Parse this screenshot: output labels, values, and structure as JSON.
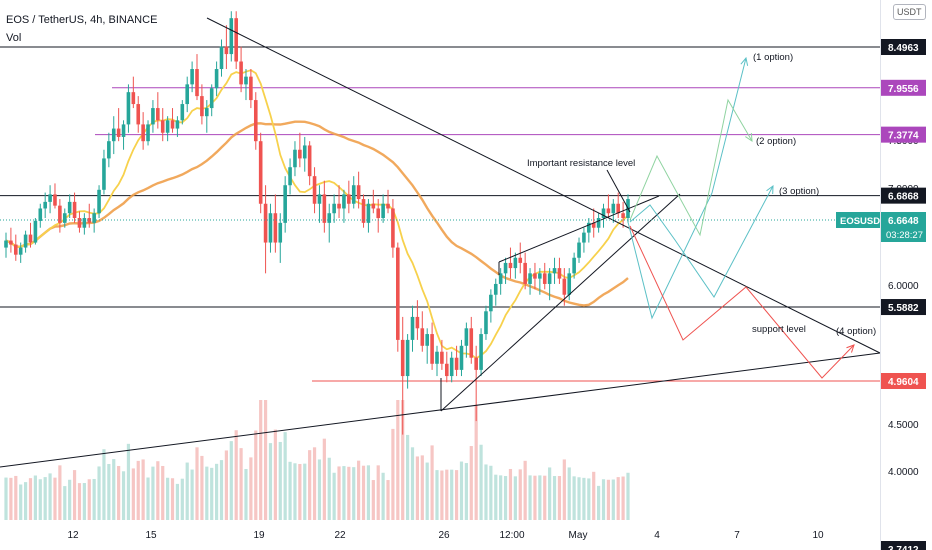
{
  "header": {
    "symbol_line": "EOS / TetherUS, 4h, BINANCE",
    "volume_label": "Vol"
  },
  "currency_tag": "USDT",
  "colors": {
    "up": "#26a69a",
    "down": "#ef5350",
    "ma_fast": "#f7d14c",
    "ma_slow": "#f0a04b",
    "purple": "#ab47bc",
    "projection_red": "#ef5350",
    "projection_teal": "#5bc0c6",
    "projection_green": "#8fd3a0"
  },
  "chart_data": {
    "type": "candlestick",
    "y_axis": {
      "scale": "log",
      "range": [
        3.74,
        9.0
      ],
      "ticks": [
        "7.5000",
        "7.0000",
        "6.0000",
        "4.5000",
        "4.0000"
      ]
    },
    "x_axis": {
      "ticks": [
        "12",
        "15",
        "19",
        "22",
        "26",
        "12:00",
        "May",
        "4",
        "7",
        "10"
      ]
    },
    "price_levels": [
      {
        "label": "8.4963",
        "value": 8.4963,
        "style": "black-line"
      },
      {
        "label": "7.9556",
        "value": 7.9556,
        "style": "purple-line"
      },
      {
        "label": "7.3774",
        "value": 7.3774,
        "style": "purple-line"
      },
      {
        "label": "6.6868",
        "value": 6.6868,
        "style": "black-line"
      },
      {
        "label": "5.5882",
        "value": 5.5882,
        "style": "black-line"
      },
      {
        "label": "4.9604",
        "value": 4.9604,
        "style": "red-line"
      }
    ],
    "current_price": {
      "symbol": "EOSUSDT",
      "price": "6.6648",
      "countdown": "03:28:27"
    },
    "bottom_partial_tick": "3.7412",
    "annotations": {
      "resistance": "Important resistance level",
      "support": "support level",
      "option1": "(1 option)",
      "option2": "(2 option)",
      "option3": "(3 option)",
      "option4": "(4 option)"
    },
    "candles": [
      [
        6.15,
        6.3,
        6.05,
        6.22
      ],
      [
        6.22,
        6.35,
        6.1,
        6.18
      ],
      [
        6.18,
        6.28,
        6.02,
        6.08
      ],
      [
        6.08,
        6.2,
        6.0,
        6.15
      ],
      [
        6.15,
        6.32,
        6.1,
        6.28
      ],
      [
        6.28,
        6.4,
        6.15,
        6.2
      ],
      [
        6.2,
        6.45,
        6.18,
        6.42
      ],
      [
        6.42,
        6.6,
        6.35,
        6.55
      ],
      [
        6.55,
        6.72,
        6.45,
        6.62
      ],
      [
        6.62,
        6.8,
        6.5,
        6.7
      ],
      [
        6.7,
        6.82,
        6.55,
        6.58
      ],
      [
        6.58,
        6.65,
        6.3,
        6.4
      ],
      [
        6.4,
        6.55,
        6.35,
        6.5
      ],
      [
        6.5,
        6.7,
        6.45,
        6.62
      ],
      [
        6.62,
        6.72,
        6.4,
        6.45
      ],
      [
        6.45,
        6.52,
        6.3,
        6.35
      ],
      [
        6.35,
        6.5,
        6.28,
        6.45
      ],
      [
        6.45,
        6.6,
        6.35,
        6.4
      ],
      [
        6.4,
        6.55,
        6.3,
        6.5
      ],
      [
        6.5,
        6.8,
        6.45,
        6.75
      ],
      [
        6.75,
        7.2,
        6.7,
        7.1
      ],
      [
        7.1,
        7.4,
        7.0,
        7.3
      ],
      [
        7.3,
        7.6,
        7.15,
        7.45
      ],
      [
        7.45,
        7.7,
        7.3,
        7.35
      ],
      [
        7.35,
        7.55,
        7.2,
        7.5
      ],
      [
        7.5,
        8.0,
        7.4,
        7.9
      ],
      [
        7.9,
        8.1,
        7.7,
        7.75
      ],
      [
        7.75,
        7.85,
        7.4,
        7.5
      ],
      [
        7.5,
        7.65,
        7.2,
        7.3
      ],
      [
        7.3,
        7.55,
        7.25,
        7.5
      ],
      [
        7.5,
        7.8,
        7.4,
        7.7
      ],
      [
        7.7,
        7.9,
        7.45,
        7.55
      ],
      [
        7.55,
        7.7,
        7.3,
        7.4
      ],
      [
        7.4,
        7.6,
        7.3,
        7.55
      ],
      [
        7.55,
        7.7,
        7.4,
        7.45
      ],
      [
        7.45,
        7.6,
        7.35,
        7.55
      ],
      [
        7.55,
        7.8,
        7.5,
        7.75
      ],
      [
        7.75,
        8.1,
        7.65,
        8.0
      ],
      [
        8.0,
        8.3,
        7.9,
        8.2
      ],
      [
        8.2,
        8.4,
        7.8,
        7.85
      ],
      [
        7.85,
        8.0,
        7.5,
        7.6
      ],
      [
        7.6,
        7.8,
        7.4,
        7.7
      ],
      [
        7.7,
        8.0,
        7.6,
        7.95
      ],
      [
        7.95,
        8.3,
        7.85,
        8.2
      ],
      [
        8.2,
        8.6,
        8.1,
        8.5
      ],
      [
        8.5,
        8.8,
        8.2,
        8.4
      ],
      [
        8.4,
        9.0,
        8.3,
        8.9
      ],
      [
        8.9,
        9.0,
        8.2,
        8.3
      ],
      [
        8.3,
        8.5,
        7.9,
        8.0
      ],
      [
        8.0,
        8.2,
        7.8,
        8.1
      ],
      [
        8.1,
        8.2,
        7.7,
        7.8
      ],
      [
        7.8,
        7.9,
        7.2,
        7.3
      ],
      [
        7.3,
        7.4,
        6.5,
        6.6
      ],
      [
        6.6,
        6.8,
        5.9,
        6.2
      ],
      [
        6.2,
        6.6,
        6.1,
        6.5
      ],
      [
        6.5,
        6.7,
        6.1,
        6.2
      ],
      [
        6.2,
        6.5,
        6.0,
        6.4
      ],
      [
        6.4,
        6.9,
        6.3,
        6.8
      ],
      [
        6.8,
        7.1,
        6.7,
        7.0
      ],
      [
        7.0,
        7.3,
        6.9,
        7.2
      ],
      [
        7.2,
        7.4,
        7.0,
        7.1
      ],
      [
        7.1,
        7.35,
        6.95,
        7.25
      ],
      [
        7.25,
        7.3,
        6.8,
        6.9
      ],
      [
        6.9,
        7.0,
        6.5,
        6.6
      ],
      [
        6.6,
        6.8,
        6.4,
        6.7
      ],
      [
        6.7,
        6.85,
        6.3,
        6.4
      ],
      [
        6.4,
        6.6,
        6.2,
        6.5
      ],
      [
        6.5,
        6.7,
        6.4,
        6.6
      ],
      [
        6.6,
        6.8,
        6.45,
        6.55
      ],
      [
        6.55,
        6.75,
        6.4,
        6.7
      ],
      [
        6.7,
        6.85,
        6.5,
        6.6
      ],
      [
        6.6,
        6.9,
        6.55,
        6.8
      ],
      [
        6.8,
        6.95,
        6.55,
        6.65
      ],
      [
        6.65,
        6.7,
        6.35,
        6.4
      ],
      [
        6.4,
        6.65,
        6.3,
        6.6
      ],
      [
        6.6,
        6.75,
        6.5,
        6.55
      ],
      [
        6.55,
        6.65,
        6.3,
        6.45
      ],
      [
        6.45,
        6.7,
        6.4,
        6.6
      ],
      [
        6.6,
        6.75,
        6.5,
        6.55
      ],
      [
        6.55,
        6.65,
        6.05,
        6.15
      ],
      [
        6.15,
        6.2,
        5.2,
        5.3
      ],
      [
        5.3,
        5.5,
        4.55,
        5.0
      ],
      [
        5.0,
        5.35,
        4.9,
        5.3
      ],
      [
        5.3,
        5.6,
        5.2,
        5.5
      ],
      [
        5.5,
        5.65,
        5.3,
        5.4
      ],
      [
        5.4,
        5.55,
        5.2,
        5.25
      ],
      [
        5.25,
        5.4,
        5.1,
        5.35
      ],
      [
        5.35,
        5.45,
        5.05,
        5.1
      ],
      [
        5.1,
        5.25,
        5.0,
        5.2
      ],
      [
        5.2,
        5.3,
        5.05,
        5.1
      ],
      [
        5.1,
        5.2,
        4.95,
        5.0
      ],
      [
        5.0,
        5.2,
        4.95,
        5.15
      ],
      [
        5.15,
        5.25,
        5.0,
        5.05
      ],
      [
        5.05,
        5.3,
        5.0,
        5.25
      ],
      [
        5.25,
        5.45,
        5.15,
        5.4
      ],
      [
        5.4,
        5.5,
        5.1,
        5.15
      ],
      [
        5.15,
        5.25,
        4.65,
        5.05
      ],
      [
        5.05,
        5.4,
        5.0,
        5.35
      ],
      [
        5.35,
        5.6,
        5.3,
        5.55
      ],
      [
        5.55,
        5.75,
        5.45,
        5.7
      ],
      [
        5.7,
        5.85,
        5.6,
        5.8
      ],
      [
        5.8,
        5.95,
        5.7,
        5.9
      ],
      [
        5.9,
        6.05,
        5.8,
        6.0
      ],
      [
        6.0,
        6.15,
        5.85,
        5.95
      ],
      [
        5.95,
        6.1,
        5.85,
        6.05
      ],
      [
        6.05,
        6.2,
        5.9,
        6.0
      ],
      [
        6.0,
        6.1,
        5.75,
        5.8
      ],
      [
        5.8,
        5.95,
        5.7,
        5.9
      ],
      [
        5.9,
        6.0,
        5.75,
        5.85
      ],
      [
        5.85,
        5.95,
        5.7,
        5.9
      ],
      [
        5.9,
        6.0,
        5.75,
        5.8
      ],
      [
        5.8,
        5.95,
        5.65,
        5.9
      ],
      [
        5.9,
        6.05,
        5.8,
        5.95
      ],
      [
        5.95,
        6.05,
        5.8,
        5.85
      ],
      [
        5.85,
        5.95,
        5.6,
        5.7
      ],
      [
        5.7,
        5.95,
        5.65,
        5.9
      ],
      [
        5.9,
        6.1,
        5.85,
        6.05
      ],
      [
        6.05,
        6.25,
        6.0,
        6.2
      ],
      [
        6.2,
        6.35,
        6.1,
        6.3
      ],
      [
        6.3,
        6.45,
        6.2,
        6.4
      ],
      [
        6.4,
        6.55,
        6.25,
        6.35
      ],
      [
        6.35,
        6.5,
        6.3,
        6.45
      ],
      [
        6.45,
        6.6,
        6.35,
        6.55
      ],
      [
        6.55,
        6.7,
        6.45,
        6.5
      ],
      [
        6.5,
        6.65,
        6.4,
        6.6
      ],
      [
        6.6,
        6.72,
        6.45,
        6.5
      ],
      [
        6.5,
        6.62,
        6.35,
        6.45
      ],
      [
        6.45,
        6.7,
        6.4,
        6.65
      ]
    ]
  }
}
